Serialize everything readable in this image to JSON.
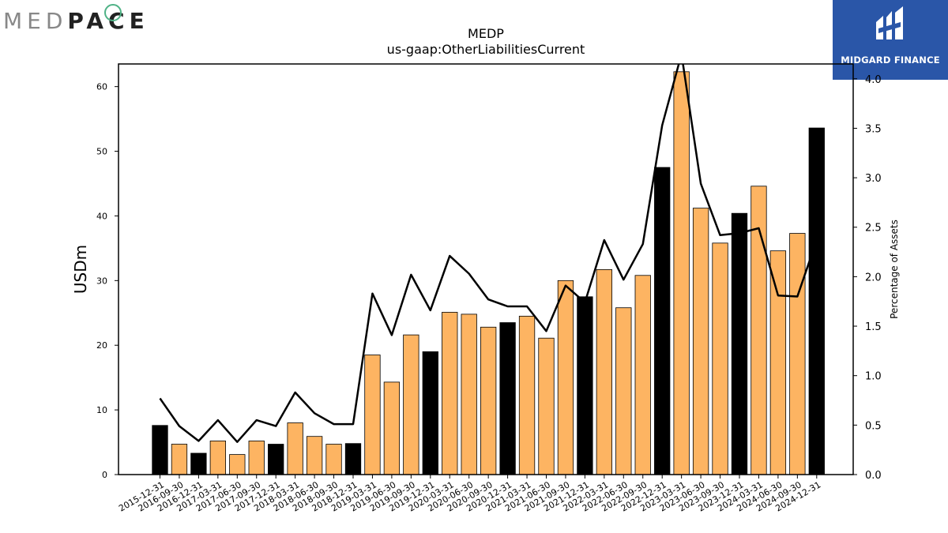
{
  "brand": {
    "left_logo_text": "MEDPACE",
    "right_logo_text": "MIDGARD FINANCE",
    "right_logo_bg": "#2a56a8"
  },
  "chart_data": {
    "type": "bar",
    "title": "MEDP",
    "subtitle": "us-gaap:OtherLiabilitiesCurrent",
    "ylabel": "USDm",
    "y2label": "Percentage of Assets",
    "ylim": [
      0,
      63.5
    ],
    "y2lim": [
      0,
      4.15
    ],
    "yticks": [
      0,
      10,
      20,
      30,
      40,
      50,
      60
    ],
    "y2ticks": [
      "0.0",
      "0.5",
      "1.0",
      "1.5",
      "2.0",
      "2.5",
      "3.0",
      "3.5",
      "4.0"
    ],
    "colors": {
      "annual": "#000000",
      "quarterly": "#fdb462",
      "line": "#000000"
    },
    "categories": [
      "2015-12-31",
      "2016-09-30",
      "2016-12-31",
      "2017-03-31",
      "2017-06-30",
      "2017-09-30",
      "2017-12-31",
      "2018-03-31",
      "2018-06-30",
      "2018-09-30",
      "2018-12-31",
      "2019-03-31",
      "2019-06-30",
      "2019-09-30",
      "2019-12-31",
      "2020-03-31",
      "2020-06-30",
      "2020-09-30",
      "2020-12-31",
      "2021-03-31",
      "2021-06-30",
      "2021-09-30",
      "2021-12-31",
      "2022-03-31",
      "2022-06-30",
      "2022-09-30",
      "2022-12-31",
      "2023-03-31",
      "2023-06-30",
      "2023-09-30",
      "2023-12-31",
      "2024-03-31",
      "2024-06-30",
      "2024-09-30",
      "2024-12-31"
    ],
    "series": [
      {
        "values": [
          7.6,
          4.7,
          3.3,
          5.2,
          3.1,
          5.2,
          4.7,
          8.0,
          5.9,
          4.7,
          4.8,
          18.5,
          14.3,
          21.6,
          19.0,
          25.1,
          24.8,
          22.8,
          23.5,
          24.5,
          21.1,
          30.0,
          27.5,
          31.7,
          25.8,
          30.8,
          47.5,
          62.3,
          41.2,
          35.8,
          40.4,
          44.6,
          34.6,
          37.3,
          53.6
        ],
        "annual": [
          true,
          false,
          true,
          false,
          false,
          false,
          true,
          false,
          false,
          false,
          true,
          false,
          false,
          false,
          true,
          false,
          false,
          false,
          true,
          false,
          false,
          false,
          true,
          false,
          false,
          false,
          true,
          false,
          false,
          false,
          true,
          false,
          false,
          false,
          true
        ]
      },
      {
        "axis": "right",
        "values": [
          0.77,
          0.49,
          0.34,
          0.55,
          0.33,
          0.55,
          0.49,
          0.83,
          0.62,
          0.51,
          0.51,
          1.83,
          1.41,
          2.02,
          1.66,
          2.21,
          2.03,
          1.77,
          1.7,
          1.7,
          1.45,
          1.91,
          1.74,
          2.37,
          1.97,
          2.33,
          3.53,
          4.25,
          2.94,
          2.42,
          2.44,
          2.49,
          1.81,
          1.8,
          2.37
        ]
      }
    ]
  }
}
